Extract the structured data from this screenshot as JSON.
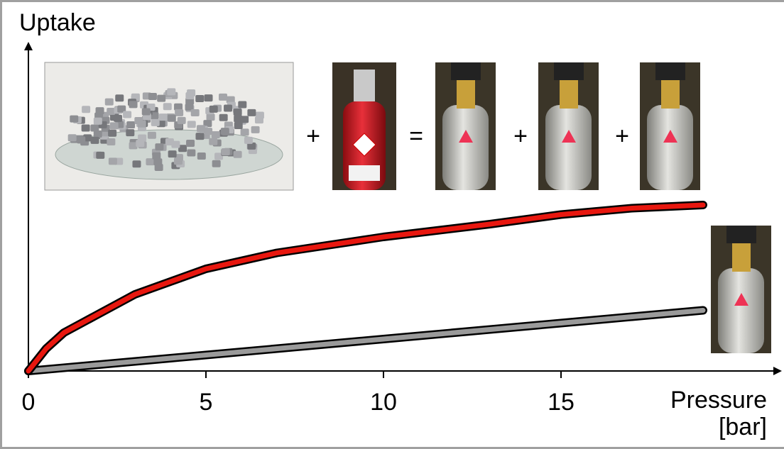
{
  "chart_data": {
    "type": "line",
    "y_label": "Uptake",
    "x_label": "Pressure [bar]",
    "annotations": [
      "+",
      "=",
      "+",
      "+"
    ],
    "xlim": [
      0,
      21
    ],
    "xticks": [
      0,
      5,
      10,
      15
    ],
    "ylim": [
      0,
      100
    ],
    "x": [
      0,
      0.5,
      1,
      1.5,
      2,
      3,
      4,
      5,
      7,
      10,
      13,
      15,
      17,
      19
    ],
    "series": [
      {
        "color": "#e8170f",
        "values": [
          0,
          7,
          12,
          15,
          18,
          24,
          28,
          32,
          37,
          42,
          46,
          49,
          51,
          52
        ]
      },
      {
        "color": "#9a9a9a",
        "values": [
          0,
          0.5,
          1,
          1.5,
          2,
          3,
          4,
          5,
          7,
          10,
          13,
          15,
          17,
          19
        ]
      }
    ]
  }
}
